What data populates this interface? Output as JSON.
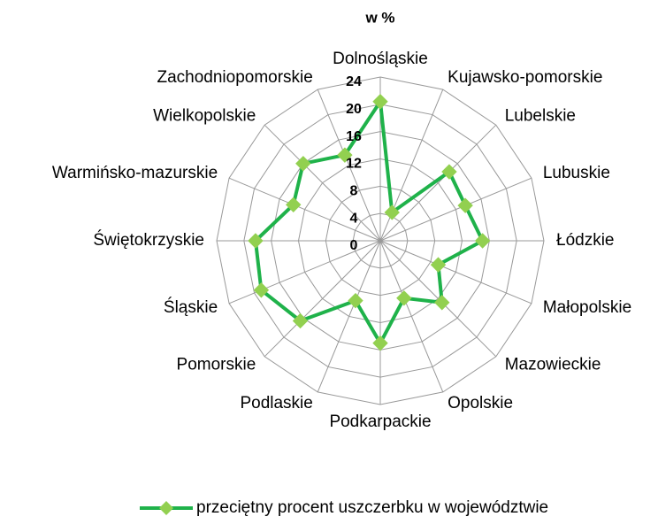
{
  "chart_data": {
    "type": "radar",
    "title": "w %",
    "categories": [
      "Dolnośląskie",
      "Kujawsko-pomorskie",
      "Lubelskie",
      "Lubuskie",
      "Łódzkie",
      "Małopolskie",
      "Mazowieckie",
      "Opolskie",
      "Podkarpackie",
      "Podlaskie",
      "Pomorskie",
      "Śląskie",
      "Świętokrzyskie",
      "Warmińsko-mazurskie",
      "Wielkopolskie",
      "Zachodniopomorskie"
    ],
    "series": [
      {
        "name": "przeciętny procent uszczerbku w województwie",
        "color": "#1fb24a",
        "marker_color": "#92d050",
        "values": [
          20.4,
          4.5,
          14.3,
          13.5,
          15,
          9.2,
          12.8,
          9.1,
          15,
          9.5,
          16.6,
          18.9,
          18.3,
          13.8,
          16,
          13.6
        ]
      }
    ],
    "ylim": [
      0,
      24
    ],
    "yticks": [
      0,
      4,
      8,
      12,
      16,
      20,
      24
    ],
    "grid": true,
    "legend": "bottom"
  }
}
